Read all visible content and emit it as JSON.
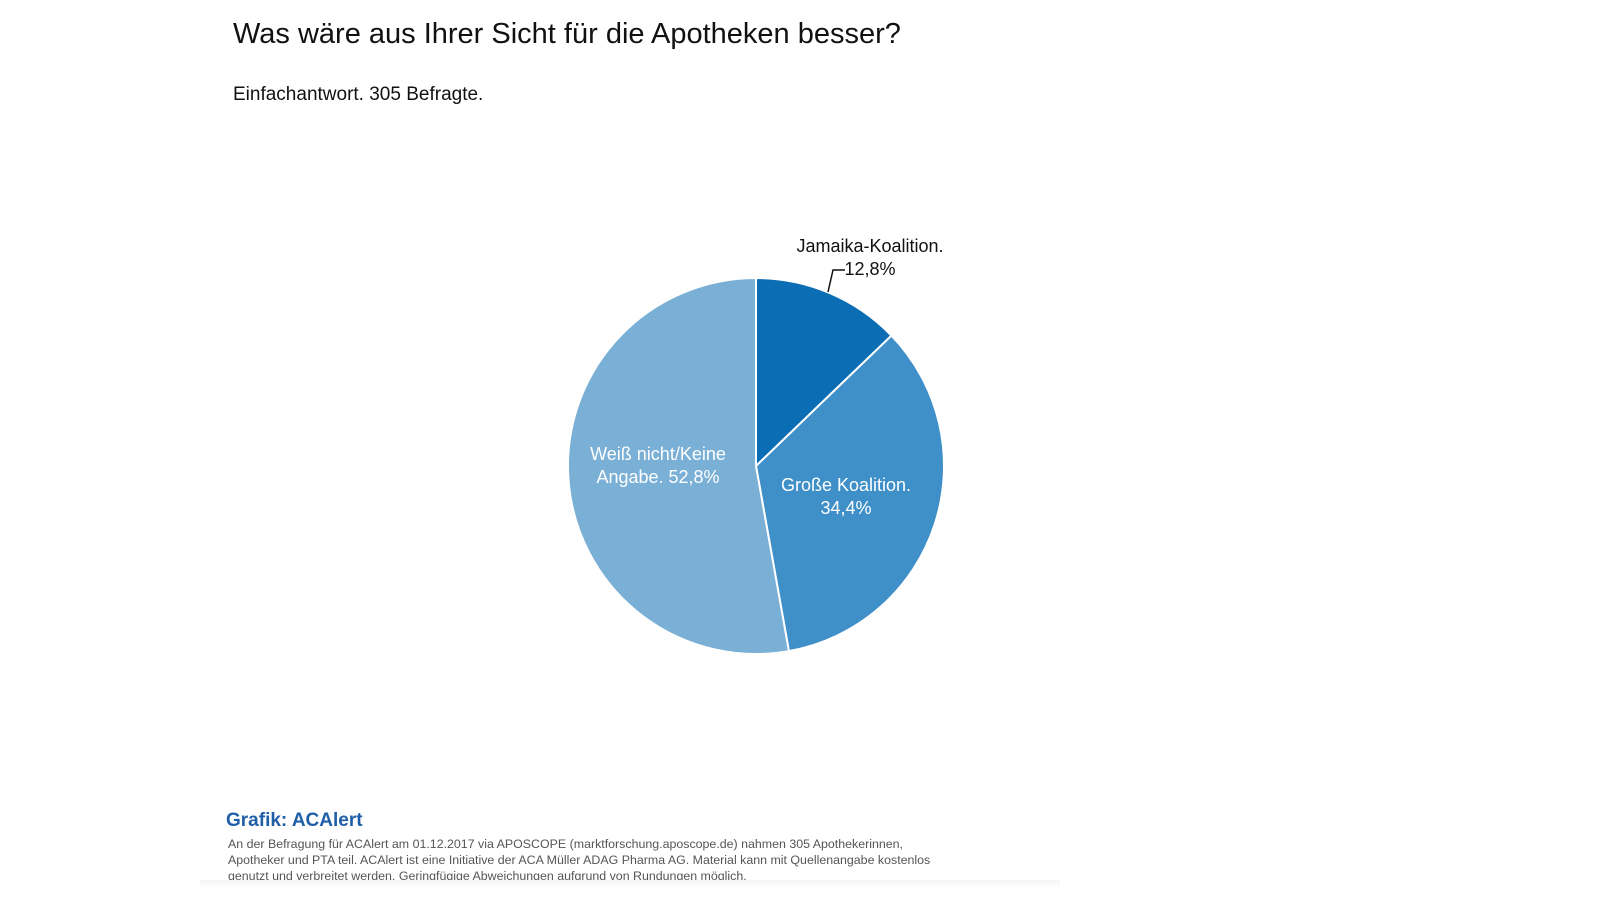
{
  "header": {
    "title": "Was wäre aus Ihrer Sicht für die Apotheken besser?",
    "subtitle": "Einfachantwort. 305 Befragte."
  },
  "chart_data": {
    "type": "pie",
    "title": "Was wäre aus Ihrer Sicht für die Apotheken besser?",
    "subtitle": "Einfachantwort. 305 Befragte.",
    "unit": "%",
    "slices": [
      {
        "label": "Jamaika-Koalition.",
        "value": 12.8,
        "value_label": "12,8%",
        "color": "#0b6db3",
        "label_position": "outside-top"
      },
      {
        "label": "Große Koalition.",
        "value": 34.4,
        "value_label": "34,4%",
        "color": "#3f8fc8",
        "label_position": "inside"
      },
      {
        "label": "Weiß nicht/Keine Angabe.",
        "value": 52.8,
        "value_label": "52,8%",
        "color": "#7aafd6",
        "label_position": "inside"
      }
    ],
    "slice_labels": [
      {
        "lines": [
          "Jamaika-Koalition.",
          "12,8%"
        ]
      },
      {
        "lines": [
          "Große Koalition.",
          "34,4%"
        ]
      },
      {
        "lines": [
          "Weiß nicht/Keine",
          "Angabe. 52,8%"
        ]
      }
    ],
    "start": "12 o'clock",
    "direction": "clockwise"
  },
  "footer": {
    "source": "Grafik: ACAlert",
    "note": "An der Befragung für ACAlert am 01.12.2017 via APOSCOPE (marktforschung.aposcope.de) nahmen 305 Apothekerinnen, Apotheker und PTA teil. ACAlert ist eine Initiative der ACA Müller ADAG Pharma AG. Material kann mit Quellenangabe kostenlos genutzt und verbreitet werden. Geringfügige Abweichungen aufgrund von Rundungen möglich."
  }
}
